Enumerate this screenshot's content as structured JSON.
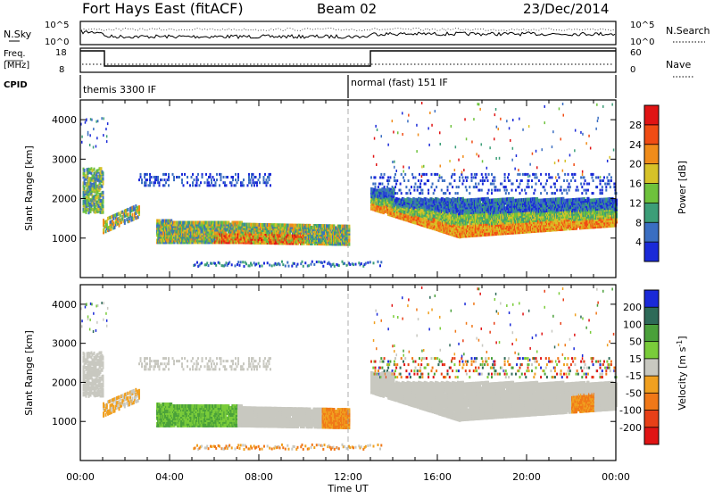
{
  "header": {
    "station": "Fort Hays East (fitACF)",
    "beam": "Beam 02",
    "date": "23/Dec/2014"
  },
  "top_panel": {
    "nsky_label": "N.Sky",
    "nsearch_label": "N.Search",
    "left_ticks": [
      "10^5",
      "10^0"
    ],
    "right_ticks": [
      "10^5",
      "10^0"
    ],
    "freq_label_1": "Freq.",
    "freq_label_2": "[MHz]",
    "freq_ticks": [
      "18",
      "8"
    ],
    "nave_label": "Nave",
    "nave_ticks": [
      "60",
      "0"
    ],
    "cpid_label": "CPID",
    "cpid_segments": [
      {
        "label": "themis 3300 IF",
        "start_hour": 0,
        "end_hour": 12
      },
      {
        "label": "normal (fast) 151 IF",
        "start_hour": 12,
        "end_hour": 24
      }
    ]
  },
  "chart_data": [
    {
      "type": "heatmap",
      "parameter": "Power",
      "ylabel": "Slant Range [km]",
      "colorbar_label": "Power [dB]",
      "colorbar_ticks": [
        "4",
        "8",
        "12",
        "16",
        "20",
        "24",
        "28"
      ],
      "colorbar_colors": [
        "#1a2ad8",
        "#3a6ec2",
        "#3c9e78",
        "#6ec23c",
        "#d6c228",
        "#f08c1a",
        "#f04c14",
        "#e01414"
      ],
      "y_ticks": [
        "1000",
        "2000",
        "3000",
        "4000"
      ],
      "ylim": [
        0,
        4500
      ]
    },
    {
      "type": "heatmap",
      "parameter": "Velocity",
      "ylabel": "Slant Range [km]",
      "colorbar_label": "Velocity [m s",
      "colorbar_label_sup": "-1",
      "colorbar_label_end": "]",
      "colorbar_ticks": [
        "200",
        "100",
        "50",
        "15",
        "-15",
        "-50",
        "-100",
        "-200"
      ],
      "colorbar_colors": [
        "#1a2ad8",
        "#2e6a58",
        "#4aa03a",
        "#7acc3a",
        "#c8c8c0",
        "#f0a020",
        "#f07818",
        "#e84018",
        "#e01414"
      ],
      "y_ticks": [
        "1000",
        "2000",
        "3000",
        "4000"
      ],
      "ylim": [
        0,
        4500
      ]
    }
  ],
  "x_axis": {
    "label": "Time UT",
    "ticks": [
      "00:00",
      "04:00",
      "08:00",
      "12:00",
      "16:00",
      "20:00",
      "00:00"
    ],
    "xlim_hours": [
      0,
      24
    ]
  }
}
